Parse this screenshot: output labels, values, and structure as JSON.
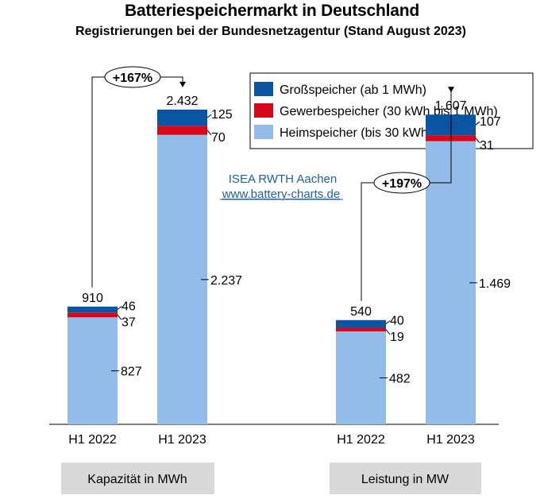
{
  "title": "Batteriespeichermarkt in Deutschland",
  "subtitle": "Registrierungen bei der Bundesnetzagentur (Stand August 2023)",
  "credit": {
    "org": "ISEA RWTH Aachen",
    "url": "www.battery-charts.de"
  },
  "colors": {
    "gross": "#0a55a2",
    "gewerbe": "#d3091b",
    "heim": "#93bce8"
  },
  "chart_data": {
    "type": "bar",
    "stacked": true,
    "title": "Batteriespeichermarkt in Deutschland",
    "subtitle": "Registrierungen bei der Bundesnetzagentur (Stand August 2023)",
    "legend": [
      {
        "key": "gross",
        "label": "Großspeicher (ab 1 MWh)"
      },
      {
        "key": "gewerbe",
        "label": "Gewerbespeicher (30 kWh bis 1 MWh)"
      },
      {
        "key": "heim",
        "label": "Heimspeicher (bis 30 kWh)"
      }
    ],
    "legend_position": "top-right",
    "groups": [
      {
        "name": "Kapazität in MWh",
        "growth_label": "+167%",
        "ylim": [
          0,
          2800
        ],
        "bars": [
          {
            "category": "H1 2022",
            "total": 910,
            "total_label": "910",
            "heim": 827,
            "heim_label": "827",
            "gewerbe": 37,
            "gewerbe_label": "37",
            "gross": 46,
            "gross_label": "46"
          },
          {
            "category": "H1 2023",
            "total": 2432,
            "total_label": "2.432",
            "heim": 2237,
            "heim_label": "2.237",
            "gewerbe": 70,
            "gewerbe_label": "70",
            "gross": 125,
            "gross_label": "125"
          }
        ]
      },
      {
        "name": "Leistung in MW",
        "growth_label": "+197%",
        "ylim": [
          0,
          1880
        ],
        "bars": [
          {
            "category": "H1 2022",
            "total": 540,
            "total_label": "540",
            "heim": 482,
            "heim_label": "482",
            "gewerbe": 19,
            "gewerbe_label": "19",
            "gross": 40,
            "gross_label": "40"
          },
          {
            "category": "H1 2023",
            "total": 1607,
            "total_label": "1.607",
            "heim": 1469,
            "heim_label": "1.469",
            "gewerbe": 31,
            "gewerbe_label": "31",
            "gross": 107,
            "gross_label": "107"
          }
        ]
      }
    ]
  }
}
